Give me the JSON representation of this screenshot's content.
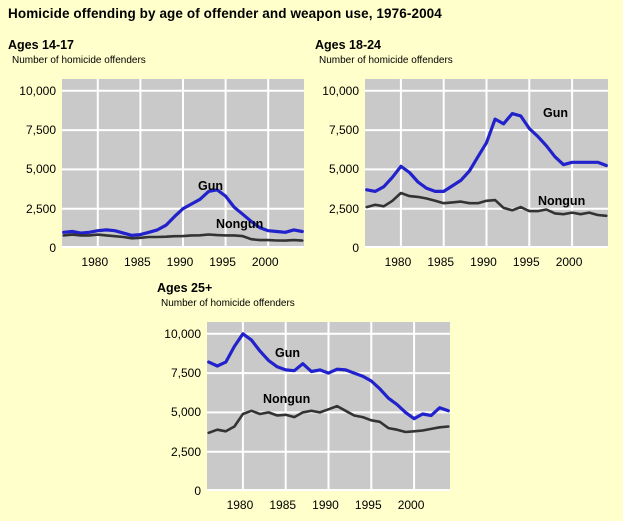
{
  "page": {
    "title": "Homicide offending by age of offender and weapon use, 1976-2004",
    "background": "#FFFFCC"
  },
  "chart_data": [
    {
      "type": "line",
      "title": "Ages 14-17",
      "axis_caption": "Number of homicide offenders",
      "years": [
        1976,
        1977,
        1978,
        1979,
        1980,
        1981,
        1982,
        1983,
        1984,
        1985,
        1986,
        1987,
        1988,
        1989,
        1990,
        1991,
        1992,
        1993,
        1994,
        1995,
        1996,
        1997,
        1998,
        1999,
        2000,
        2001,
        2002,
        2003,
        2004
      ],
      "series": [
        {
          "name": "Gun",
          "color": "#2222CC",
          "values": [
            1000,
            1050,
            950,
            1000,
            1100,
            1150,
            1100,
            950,
            800,
            850,
            1000,
            1150,
            1450,
            2000,
            2500,
            2800,
            3100,
            3600,
            3700,
            3300,
            2600,
            2150,
            1700,
            1300,
            1100,
            1050,
            1000,
            1150,
            1050
          ]
        },
        {
          "name": "Nongun",
          "color": "#333333",
          "values": [
            800,
            850,
            800,
            800,
            850,
            800,
            750,
            700,
            620,
            650,
            700,
            700,
            720,
            750,
            760,
            800,
            810,
            860,
            820,
            800,
            800,
            760,
            560,
            500,
            500,
            480,
            470,
            500,
            470
          ]
        }
      ],
      "yticks": [
        {
          "label": "10,000",
          "value": 10000
        },
        {
          "label": "7,500",
          "value": 7500
        },
        {
          "label": "5,000",
          "value": 5000
        },
        {
          "label": "2,500",
          "value": 2500
        },
        {
          "label": "0",
          "value": 0
        }
      ],
      "xticks": [
        {
          "label": "1980",
          "value": 1980
        },
        {
          "label": "1985",
          "value": 1985
        },
        {
          "label": "1990",
          "value": 1990
        },
        {
          "label": "1995",
          "value": 1995
        },
        {
          "label": "2000",
          "value": 2000
        }
      ],
      "ylim": [
        0,
        10750
      ],
      "xlim": [
        1975.8,
        2004.2
      ],
      "grid": true,
      "legend": "inline-labels",
      "plot_bg": "#C9C9C9",
      "grid_color": "#FFFFFF"
    },
    {
      "type": "line",
      "title": "Ages 18-24",
      "axis_caption": "Number of homicide offenders",
      "years": [
        1976,
        1977,
        1978,
        1979,
        1980,
        1981,
        1982,
        1983,
        1984,
        1985,
        1986,
        1987,
        1988,
        1989,
        1990,
        1991,
        1992,
        1993,
        1994,
        1995,
        1996,
        1997,
        1998,
        1999,
        2000,
        2001,
        2002,
        2003,
        2004
      ],
      "series": [
        {
          "name": "Gun",
          "color": "#2222CC",
          "values": [
            3700,
            3600,
            3900,
            4500,
            5200,
            4800,
            4200,
            3800,
            3600,
            3600,
            3950,
            4300,
            4900,
            5800,
            6700,
            8200,
            7900,
            8550,
            8400,
            7600,
            7100,
            6500,
            5800,
            5300,
            5450,
            5450,
            5450,
            5450,
            5250
          ]
        },
        {
          "name": "Nongun",
          "color": "#333333",
          "values": [
            2600,
            2750,
            2650,
            3000,
            3500,
            3300,
            3250,
            3150,
            3000,
            2850,
            2900,
            2950,
            2850,
            2850,
            3000,
            3050,
            2550,
            2400,
            2600,
            2350,
            2350,
            2450,
            2200,
            2150,
            2250,
            2150,
            2250,
            2100,
            2050
          ]
        }
      ],
      "yticks": [
        {
          "label": "10,000",
          "value": 10000
        },
        {
          "label": "7,500",
          "value": 7500
        },
        {
          "label": "5,000",
          "value": 5000
        },
        {
          "label": "2,500",
          "value": 2500
        },
        {
          "label": "0",
          "value": 0
        }
      ],
      "xticks": [
        {
          "label": "1980",
          "value": 1980
        },
        {
          "label": "1985",
          "value": 1985
        },
        {
          "label": "1990",
          "value": 1990
        },
        {
          "label": "1995",
          "value": 1995
        },
        {
          "label": "2000",
          "value": 2000
        }
      ],
      "ylim": [
        0,
        10750
      ],
      "xlim": [
        1975.8,
        2004.2
      ],
      "grid": true,
      "legend": "inline-labels",
      "plot_bg": "#C9C9C9",
      "grid_color": "#FFFFFF"
    },
    {
      "type": "line",
      "title": "Ages 25+",
      "axis_caption": "Number of homicide offenders",
      "years": [
        1976,
        1977,
        1978,
        1979,
        1980,
        1981,
        1982,
        1983,
        1984,
        1985,
        1986,
        1987,
        1988,
        1989,
        1990,
        1991,
        1992,
        1993,
        1994,
        1995,
        1996,
        1997,
        1998,
        1999,
        2000,
        2001,
        2002,
        2003,
        2004
      ],
      "series": [
        {
          "name": "Gun",
          "color": "#2222CC",
          "values": [
            8200,
            7950,
            8200,
            9200,
            10000,
            9600,
            8900,
            8300,
            7900,
            7700,
            7650,
            8100,
            7600,
            7700,
            7500,
            7750,
            7700,
            7500,
            7300,
            7000,
            6500,
            5900,
            5500,
            5000,
            4600,
            4900,
            4800,
            5300,
            5100
          ]
        },
        {
          "name": "Nongun",
          "color": "#333333",
          "values": [
            3700,
            3900,
            3800,
            4100,
            4900,
            5100,
            4900,
            5000,
            4800,
            4850,
            4700,
            5000,
            5100,
            5000,
            5200,
            5400,
            5100,
            4800,
            4700,
            4500,
            4400,
            4000,
            3900,
            3750,
            3800,
            3850,
            3950,
            4050,
            4100
          ]
        }
      ],
      "yticks": [
        {
          "label": "10,000",
          "value": 10000
        },
        {
          "label": "7,500",
          "value": 7500
        },
        {
          "label": "5,000",
          "value": 5000
        },
        {
          "label": "2,500",
          "value": 2500
        },
        {
          "label": "0",
          "value": 0
        }
      ],
      "xticks": [
        {
          "label": "1980",
          "value": 1980
        },
        {
          "label": "1985",
          "value": 1985
        },
        {
          "label": "1990",
          "value": 1990
        },
        {
          "label": "1995",
          "value": 1995
        },
        {
          "label": "2000",
          "value": 2000
        }
      ],
      "ylim": [
        0,
        10750
      ],
      "xlim": [
        1975.8,
        2004.2
      ],
      "grid": true,
      "legend": "inline-labels",
      "plot_bg": "#C9C9C9",
      "grid_color": "#FFFFFF"
    }
  ]
}
